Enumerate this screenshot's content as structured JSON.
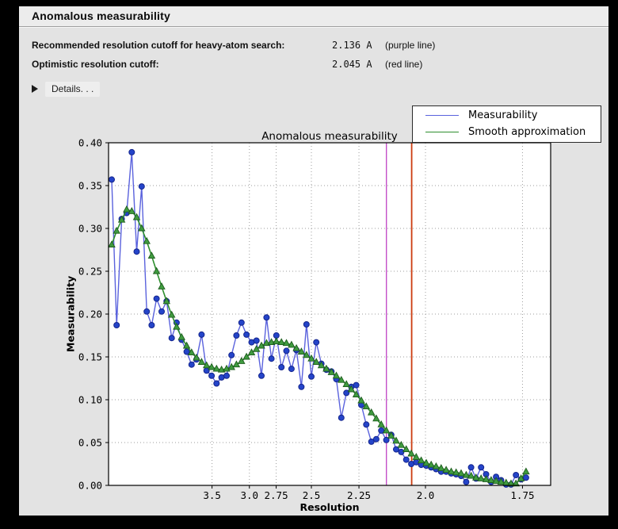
{
  "header": {
    "title": "Anomalous measurability"
  },
  "info": {
    "rows": [
      {
        "label": "Recommended resolution cutoff for heavy-atom search:",
        "value": "2.136 A",
        "note": "(purple line)"
      },
      {
        "label": "Optimistic resolution cutoff:",
        "value": "2.045 A",
        "note": "(red line)"
      }
    ],
    "details_label": "Details. . ."
  },
  "chart_data": {
    "type": "line",
    "title": "Anomalous measurability",
    "xlabel": "Resolution",
    "ylabel": "Measurability",
    "x_axis_scale": "linear in 1/d^2 (d = resolution in Angstrom)",
    "xlim_d_star_sq": [
      0,
      0.34875
    ],
    "ylim": [
      0,
      0.4
    ],
    "grid": true,
    "legend_position": "above plot, upper right",
    "x_ticks": [
      {
        "label": "3.5",
        "resolution": 3.5
      },
      {
        "label": "3.0",
        "resolution": 3.0
      },
      {
        "label": "2.75",
        "resolution": 2.75
      },
      {
        "label": "2.5",
        "resolution": 2.5
      },
      {
        "label": "2.25",
        "resolution": 2.25
      },
      {
        "label": "2.0",
        "resolution": 2.0
      },
      {
        "label": "1.75",
        "resolution": 1.75
      }
    ],
    "y_ticks": [
      {
        "label": "0.00",
        "value": 0.0
      },
      {
        "label": "0.05",
        "value": 0.05
      },
      {
        "label": "0.10",
        "value": 0.1
      },
      {
        "label": "0.15",
        "value": 0.15
      },
      {
        "label": "0.20",
        "value": 0.2
      },
      {
        "label": "0.25",
        "value": 0.25
      },
      {
        "label": "0.30",
        "value": 0.3
      },
      {
        "label": "0.35",
        "value": 0.35
      },
      {
        "label": "0.40",
        "value": 0.4
      }
    ],
    "vlines": [
      {
        "resolution": 2.136,
        "color": "#c44fc8",
        "width": 1.4,
        "meaning": "purple line: recommended cutoff"
      },
      {
        "resolution": 2.045,
        "color": "#cc3c10",
        "width": 1.8,
        "meaning": "red line: optimistic cutoff"
      }
    ],
    "x_d_star_sq": [
      0.0025,
      0.0064,
      0.0104,
      0.0143,
      0.0183,
      0.0222,
      0.0261,
      0.0301,
      0.034,
      0.0379,
      0.0419,
      0.0458,
      0.0498,
      0.0537,
      0.0576,
      0.0616,
      0.0655,
      0.0694,
      0.0734,
      0.0773,
      0.0813,
      0.0852,
      0.0891,
      0.0931,
      0.097,
      0.1009,
      0.1049,
      0.1088,
      0.1128,
      0.1167,
      0.1206,
      0.1246,
      0.1285,
      0.1324,
      0.1364,
      0.1403,
      0.1443,
      0.1482,
      0.1521,
      0.1561,
      0.16,
      0.1639,
      0.1679,
      0.1718,
      0.1758,
      0.1797,
      0.1836,
      0.1876,
      0.1915,
      0.1954,
      0.1994,
      0.2033,
      0.2073,
      0.2112,
      0.2151,
      0.2191,
      0.223,
      0.2269,
      0.2309,
      0.2348,
      0.2388,
      0.2427,
      0.2466,
      0.2506,
      0.2545,
      0.2584,
      0.2624,
      0.2663,
      0.2703,
      0.2742,
      0.2781,
      0.2821,
      0.286,
      0.2899,
      0.2939,
      0.2978,
      0.3018,
      0.3057,
      0.3096,
      0.3136,
      0.3175,
      0.3214,
      0.3254,
      0.3293
    ],
    "series": [
      {
        "name": "Measurability",
        "marker": "circle",
        "line_color": "#5a62dd",
        "marker_fill": "#2444c9",
        "marker_edge": "#15258c",
        "values": [
          0.357,
          0.187,
          0.311,
          0.318,
          0.389,
          0.273,
          0.349,
          0.203,
          0.187,
          0.218,
          0.203,
          0.215,
          0.172,
          0.19,
          0.17,
          0.156,
          0.141,
          0.147,
          0.176,
          0.134,
          0.128,
          0.119,
          0.126,
          0.128,
          0.152,
          0.175,
          0.19,
          0.176,
          0.167,
          0.169,
          0.128,
          0.196,
          0.148,
          0.175,
          0.138,
          0.157,
          0.136,
          0.158,
          0.115,
          0.188,
          0.127,
          0.167,
          0.142,
          0.135,
          0.133,
          0.124,
          0.079,
          0.108,
          0.115,
          0.117,
          0.094,
          0.071,
          0.051,
          0.054,
          0.064,
          0.053,
          0.059,
          0.042,
          0.039,
          0.03,
          0.025,
          0.027,
          0.024,
          0.023,
          0.021,
          0.019,
          0.016,
          0.016,
          0.014,
          0.013,
          0.011,
          0.004,
          0.021,
          0.008,
          0.021,
          0.013,
          0.004,
          0.01,
          0.006,
          0.001,
          0.001,
          0.012,
          0.007,
          0.009
        ]
      },
      {
        "name": "Smooth approximation",
        "marker": "triangle",
        "line_color": "#2e8f2e",
        "marker_fill": "#3f9b3f",
        "marker_edge": "#1e5c1e",
        "values": [
          0.281,
          0.297,
          0.31,
          0.322,
          0.32,
          0.313,
          0.3,
          0.285,
          0.268,
          0.25,
          0.232,
          0.215,
          0.199,
          0.185,
          0.173,
          0.163,
          0.155,
          0.149,
          0.144,
          0.14,
          0.138,
          0.136,
          0.135,
          0.136,
          0.138,
          0.141,
          0.145,
          0.15,
          0.155,
          0.159,
          0.163,
          0.166,
          0.167,
          0.168,
          0.167,
          0.166,
          0.164,
          0.16,
          0.156,
          0.152,
          0.148,
          0.144,
          0.14,
          0.136,
          0.132,
          0.128,
          0.123,
          0.118,
          0.112,
          0.106,
          0.099,
          0.092,
          0.085,
          0.078,
          0.071,
          0.064,
          0.058,
          0.052,
          0.047,
          0.042,
          0.037,
          0.033,
          0.029,
          0.026,
          0.024,
          0.022,
          0.02,
          0.018,
          0.016,
          0.015,
          0.014,
          0.012,
          0.011,
          0.009,
          0.008,
          0.007,
          0.006,
          0.005,
          0.004,
          0.003,
          0.002,
          0.002,
          0.008,
          0.016
        ]
      }
    ]
  },
  "colors": {
    "frame": "#000000",
    "panel": "#e3e3e3",
    "header_band": "#ececec",
    "plot_background": "#ffffff",
    "grid": "#9d9d9d"
  }
}
